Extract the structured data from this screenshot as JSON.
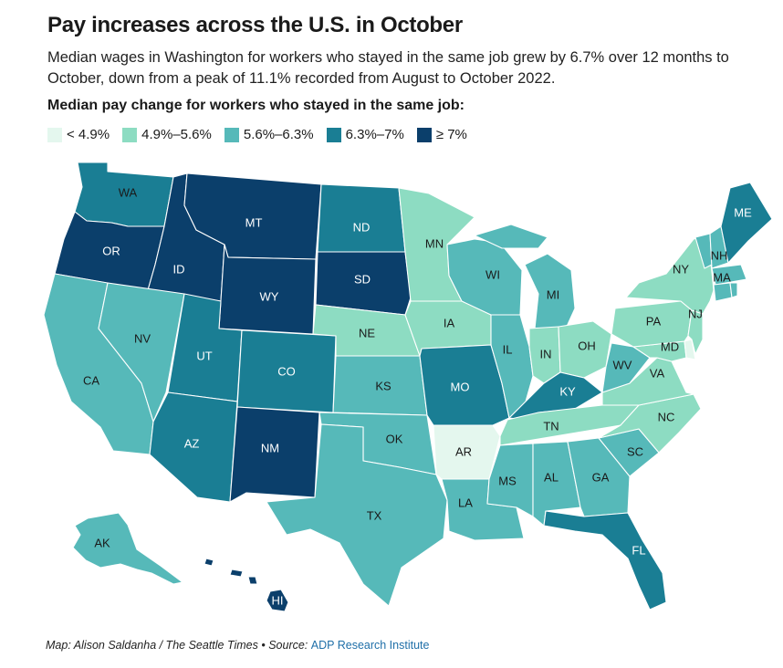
{
  "title": "Pay increases across the U.S. in October",
  "subtitle": "Median wages in Washington for workers who stayed in the same job grew by 6.7% over 12 months to October, down from a peak of 11.1% recorded from August to October 2022.",
  "legend": {
    "title": "Median pay change for workers who stayed in the same job:",
    "bins": [
      {
        "label": "< 4.9%",
        "color": "#e4f7ee"
      },
      {
        "label": "4.9%–5.6%",
        "color": "#8ddcc2"
      },
      {
        "label": "5.6%–6.3%",
        "color": "#56b9b9"
      },
      {
        "label": "6.3%–7%",
        "color": "#1a7e94"
      },
      {
        "label": "≥ 7%",
        "color": "#0b3f6b"
      }
    ]
  },
  "labels": {
    "WA": "WA",
    "OR": "OR",
    "CA": "CA",
    "ID": "ID",
    "NV": "NV",
    "MT": "MT",
    "WY": "WY",
    "UT": "UT",
    "AZ": "AZ",
    "CO": "CO",
    "NM": "NM",
    "ND": "ND",
    "SD": "SD",
    "NE": "NE",
    "KS": "KS",
    "OK": "OK",
    "TX": "TX",
    "MN": "MN",
    "IA": "IA",
    "MO": "MO",
    "AR": "AR",
    "LA": "LA",
    "WI": "WI",
    "IL": "IL",
    "MS": "MS",
    "MI": "MI",
    "IN": "IN",
    "KY": "KY",
    "TN": "TN",
    "AL": "AL",
    "OH": "OH",
    "WV": "WV",
    "GA": "GA",
    "FL": "FL",
    "SC": "SC",
    "NC": "NC",
    "VA": "VA",
    "MD": "MD",
    "PA": "PA",
    "NY": "NY",
    "NJ": "NJ",
    "MA": "MA",
    "NH": "NH",
    "ME": "ME",
    "AK": "AK",
    "HI": "HI"
  },
  "credit": {
    "prefix": "Map: Alison Saldanha / The Seattle Times • Source: ",
    "source": "ADP Research Institute"
  }
}
